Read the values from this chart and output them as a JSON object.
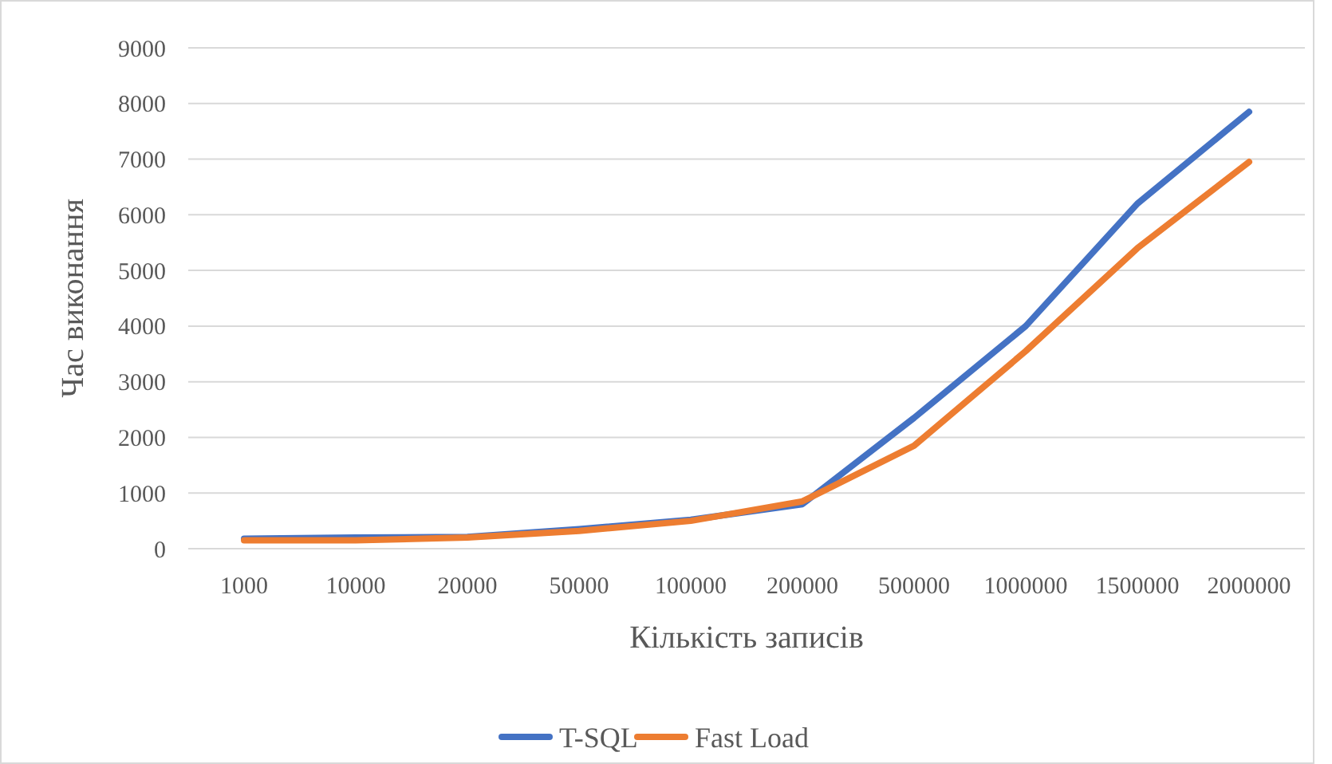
{
  "chart_data": {
    "type": "line",
    "xlabel": "Кількість записів",
    "ylabel": "Час виконання",
    "categories": [
      "1000",
      "10000",
      "20000",
      "50000",
      "100000",
      "200000",
      "500000",
      "1000000",
      "1500000",
      "2000000"
    ],
    "series": [
      {
        "name": "T-SQL",
        "color": "#4472c4",
        "values": [
          180,
          200,
          210,
          350,
          520,
          800,
          2350,
          4000,
          6200,
          7850
        ]
      },
      {
        "name": "Fast Load",
        "color": "#ed7d31",
        "values": [
          150,
          150,
          200,
          320,
          500,
          850,
          1850,
          3550,
          5400,
          6950
        ]
      }
    ],
    "ylim": [
      0,
      9000
    ],
    "yticks": [
      0,
      1000,
      2000,
      3000,
      4000,
      5000,
      6000,
      7000,
      8000,
      9000
    ],
    "grid": "y",
    "legend": "bottom",
    "marker": "none",
    "line_style": "solid"
  }
}
